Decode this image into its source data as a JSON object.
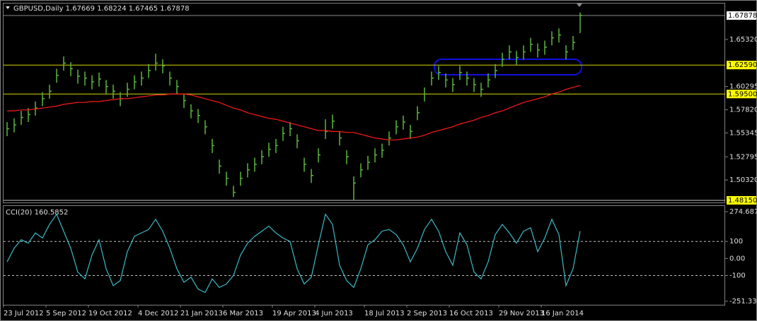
{
  "chart_data": [
    {
      "type": "hlc",
      "title": "GBPUSD,Daily  1.67669 1.68224 1.67465 1.67878",
      "categories": [
        "23 Jul 2012",
        null,
        null,
        null,
        null,
        null,
        "5 Sep 2012",
        null,
        null,
        null,
        null,
        null,
        "19 Oct 2012",
        null,
        null,
        null,
        null,
        null,
        null,
        "4 Dec 2012",
        null,
        null,
        null,
        null,
        null,
        "21 Jan 2013",
        null,
        null,
        null,
        null,
        null,
        "6 Mar 2013",
        null,
        null,
        null,
        null,
        null,
        null,
        "19 Apr 2013",
        null,
        null,
        null,
        null,
        null,
        "4 Jun 2013",
        null,
        null,
        null,
        null,
        null,
        null,
        "18 Jul 2013",
        null,
        null,
        null,
        null,
        null,
        "2 Sep 2013",
        null,
        null,
        null,
        null,
        null,
        "16 Oct 2013",
        null,
        null,
        null,
        null,
        null,
        null,
        "29 Nov 2013",
        null,
        null,
        null,
        null,
        null,
        "16 Jan 2014",
        null,
        null,
        null,
        null,
        null
      ],
      "high": [
        1.565,
        1.569,
        1.577,
        1.58,
        1.587,
        1.597,
        1.605,
        1.622,
        1.635,
        1.629,
        1.621,
        1.619,
        1.615,
        1.618,
        1.61,
        1.605,
        1.597,
        1.607,
        1.615,
        1.619,
        1.627,
        1.638,
        1.632,
        1.619,
        1.61,
        1.595,
        1.584,
        1.579,
        1.567,
        1.547,
        1.525,
        1.512,
        1.497,
        1.512,
        1.521,
        1.527,
        1.535,
        1.543,
        1.547,
        1.56,
        1.565,
        1.552,
        1.527,
        1.515,
        1.537,
        1.568,
        1.573,
        1.555,
        1.535,
        1.507,
        1.521,
        1.529,
        1.537,
        1.542,
        1.555,
        1.567,
        1.572,
        1.562,
        1.582,
        1.602,
        1.619,
        1.625,
        1.617,
        1.612,
        1.625,
        1.619,
        1.612,
        1.607,
        1.617,
        1.627,
        1.639,
        1.647,
        1.641,
        1.647,
        1.655,
        1.649,
        1.652,
        1.662,
        1.665,
        1.647,
        1.657,
        1.682
      ],
      "low": [
        1.55,
        1.554,
        1.562,
        1.565,
        1.572,
        1.582,
        1.59,
        1.607,
        1.62,
        1.614,
        1.606,
        1.604,
        1.6,
        1.603,
        1.595,
        1.59,
        1.582,
        1.592,
        1.6,
        1.604,
        1.612,
        1.62,
        1.617,
        1.604,
        1.595,
        1.58,
        1.569,
        1.564,
        1.552,
        1.532,
        1.51,
        1.497,
        1.485,
        1.497,
        1.506,
        1.512,
        1.52,
        1.528,
        1.532,
        1.545,
        1.55,
        1.537,
        1.512,
        1.5,
        1.522,
        1.547,
        1.558,
        1.54,
        1.52,
        1.482,
        1.506,
        1.514,
        1.522,
        1.527,
        1.54,
        1.552,
        1.557,
        1.547,
        1.567,
        1.587,
        1.604,
        1.61,
        1.602,
        1.597,
        1.61,
        1.604,
        1.597,
        1.592,
        1.602,
        1.612,
        1.624,
        1.632,
        1.626,
        1.632,
        1.64,
        1.634,
        1.637,
        1.647,
        1.65,
        1.632,
        1.642,
        1.66
      ],
      "close": [
        1.558,
        1.562,
        1.57,
        1.573,
        1.58,
        1.59,
        1.598,
        1.615,
        1.628,
        1.622,
        1.614,
        1.612,
        1.608,
        1.611,
        1.603,
        1.598,
        1.59,
        1.6,
        1.608,
        1.612,
        1.62,
        1.628,
        1.625,
        1.612,
        1.603,
        1.588,
        1.577,
        1.572,
        1.56,
        1.54,
        1.518,
        1.505,
        1.49,
        1.505,
        1.514,
        1.52,
        1.528,
        1.536,
        1.54,
        1.553,
        1.558,
        1.545,
        1.52,
        1.508,
        1.53,
        1.555,
        1.566,
        1.548,
        1.528,
        1.5,
        1.514,
        1.522,
        1.53,
        1.535,
        1.548,
        1.56,
        1.565,
        1.555,
        1.575,
        1.595,
        1.612,
        1.618,
        1.61,
        1.605,
        1.618,
        1.612,
        1.605,
        1.6,
        1.61,
        1.62,
        1.632,
        1.64,
        1.634,
        1.64,
        1.648,
        1.642,
        1.645,
        1.655,
        1.658,
        1.64,
        1.65,
        1.679
      ],
      "color": "#5cb53c",
      "series": [
        {
          "color": "#ff1a1a",
          "values": [
            1.577,
            1.577,
            1.578,
            1.578,
            1.579,
            1.58,
            1.581,
            1.582,
            1.584,
            1.585,
            1.586,
            1.586,
            1.587,
            1.587,
            1.588,
            1.589,
            1.59,
            1.59,
            1.591,
            1.592,
            1.593,
            1.594,
            1.594,
            1.595,
            1.595,
            1.595,
            1.594,
            1.592,
            1.59,
            1.588,
            1.586,
            1.583,
            1.58,
            1.578,
            1.575,
            1.573,
            1.571,
            1.569,
            1.568,
            1.566,
            1.564,
            1.562,
            1.56,
            1.558,
            1.556,
            1.556,
            1.555,
            1.555,
            1.554,
            1.554,
            1.552,
            1.55,
            1.548,
            1.547,
            1.546,
            1.546,
            1.547,
            1.548,
            1.549,
            1.551,
            1.554,
            1.556,
            1.558,
            1.56,
            1.563,
            1.565,
            1.567,
            1.57,
            1.572,
            1.575,
            1.577,
            1.58,
            1.583,
            1.586,
            1.588,
            1.59,
            1.592,
            1.595,
            1.597,
            1.6,
            1.602,
            1.604
          ]
        }
      ],
      "ylim": [
        1.4792,
        1.6916
      ],
      "yticks": [
        {
          "value": 1.6532,
          "label": "1.65320"
        },
        1.60295,
        {
          "value": 1.5782,
          "label": "1.57820"
        },
        1.55345,
        1.52795,
        {
          "value": 1.5032,
          "label": "1.50320"
        }
      ],
      "hlines": [
        {
          "value": 1.67878,
          "color": "#8a8a8a",
          "label_bg": "#ffffff"
        },
        {
          "value": 1.6259,
          "label": "1.62590",
          "color": "#d8d800",
          "label_bg": "#ffff00"
        },
        {
          "value": 1.595,
          "label": "1.59500",
          "color": "#d8d800",
          "label_bg": "#ffff00"
        },
        {
          "value": 1.4815,
          "label": "1.48150",
          "color": "#c8c8c8",
          "label_bg": "#ffff00"
        }
      ]
    },
    {
      "type": "line",
      "title": "CCI(20) 160.5852",
      "series": [
        {
          "color": "#3cb9c6",
          "values": [
            -20,
            60,
            110,
            90,
            150,
            120,
            200,
            260,
            160,
            60,
            -80,
            -120,
            20,
            110,
            -60,
            -160,
            -130,
            40,
            130,
            150,
            170,
            230,
            160,
            60,
            -60,
            -140,
            -110,
            -180,
            -200,
            -120,
            -170,
            -150,
            -100,
            20,
            90,
            130,
            160,
            190,
            150,
            120,
            100,
            -60,
            -150,
            -110,
            80,
            260,
            200,
            -40,
            -130,
            -170,
            -60,
            80,
            110,
            160,
            170,
            140,
            80,
            -20,
            60,
            170,
            230,
            160,
            40,
            -40,
            150,
            80,
            -80,
            -120,
            -20,
            140,
            200,
            150,
            90,
            160,
            180,
            40,
            120,
            230,
            140,
            -160,
            -60,
            160.5852
          ]
        }
      ],
      "ylim": [
        -272,
        308
      ],
      "yticks": [
        274.6873,
        100,
        {
          "value": 0,
          "label": "0.00"
        },
        -100,
        -251.3371
      ],
      "levels": [
        100,
        -100
      ]
    }
  ]
}
